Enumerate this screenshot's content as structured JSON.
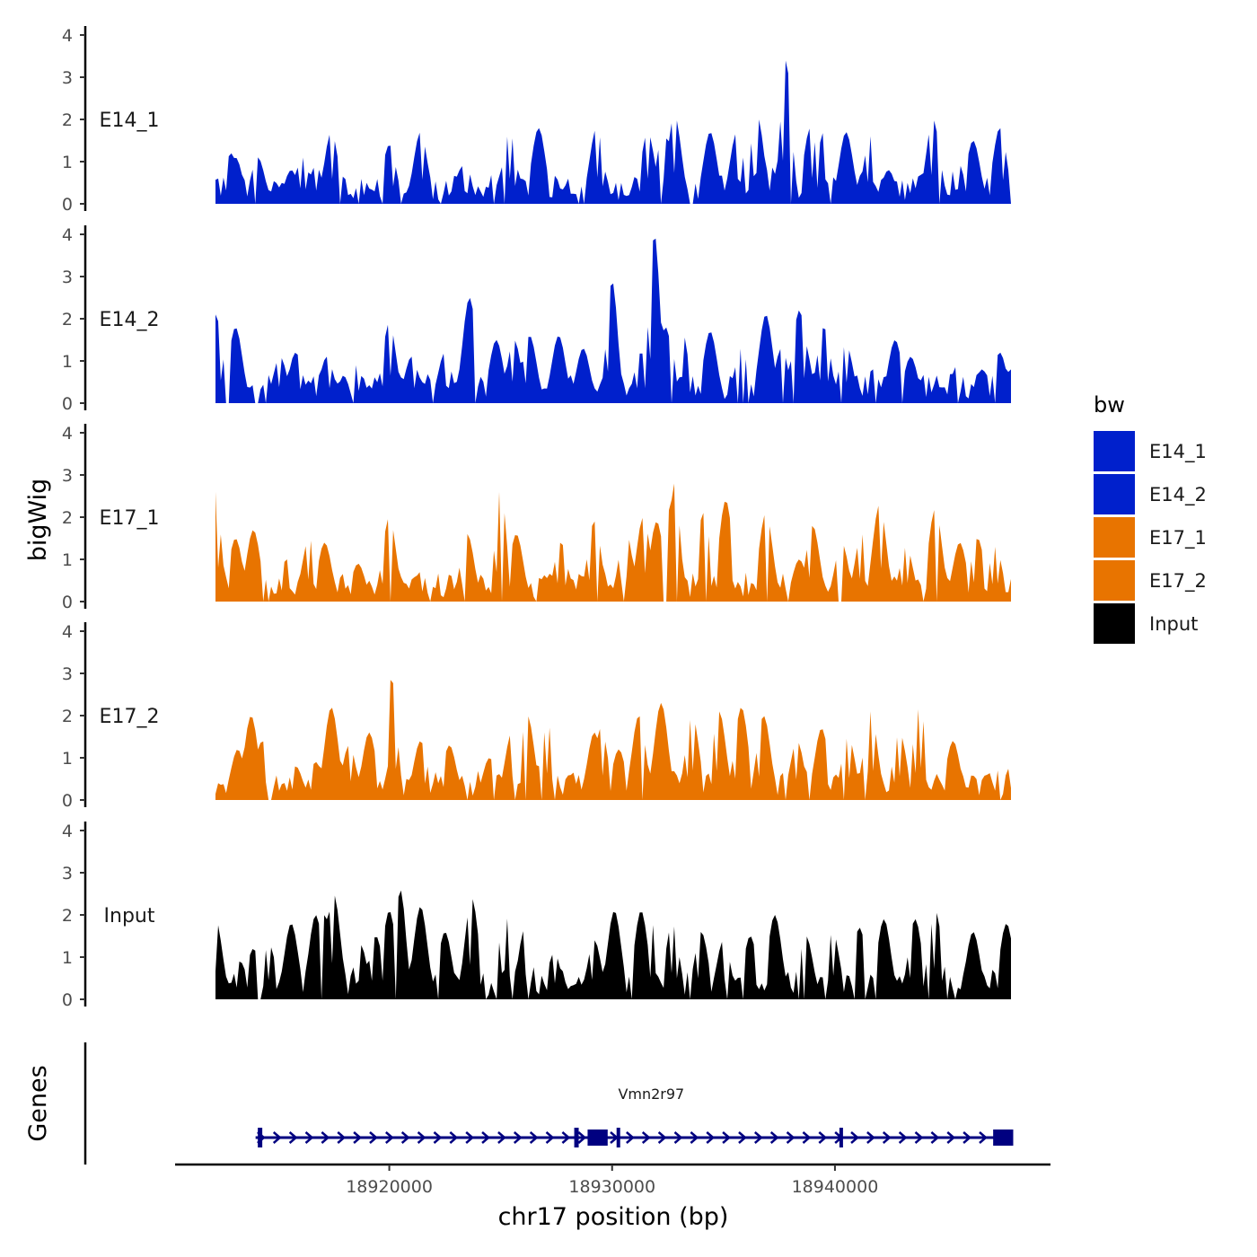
{
  "chart_data": {
    "type": "area",
    "ylabel": "bigWig",
    "xlabel": "chr17 position (bp)",
    "region": {
      "chrom": "chr17",
      "start": 18912200,
      "end": 18947900
    },
    "x_ticks": [
      18920000,
      18930000,
      18940000
    ],
    "x_tick_labels": [
      "18920000",
      "18930000",
      "18940000"
    ],
    "y_ticks": [
      0,
      1,
      2,
      3,
      4
    ],
    "y_tick_labels": [
      "0",
      "1",
      "2",
      "3",
      "4"
    ],
    "ylim": [
      0,
      4
    ],
    "legend": {
      "title": "bw",
      "position": "right"
    },
    "series": [
      {
        "name": "E14_1",
        "color": "#0020CC",
        "peaks": [
          [
            18912300,
            0.6
          ],
          [
            18912900,
            1.2
          ],
          [
            18913100,
            1.1
          ],
          [
            18913600,
            0.5
          ],
          [
            18914100,
            1.1
          ],
          [
            18915600,
            0.8
          ],
          [
            18916100,
            1.1
          ],
          [
            18916700,
            0.9
          ],
          [
            18917400,
            1.7
          ],
          [
            18918100,
            0.6
          ],
          [
            18918800,
            0.6
          ],
          [
            18920000,
            1.4
          ],
          [
            18921400,
            1.7
          ],
          [
            18923300,
            0.9
          ],
          [
            18925400,
            1.7
          ],
          [
            18926700,
            1.8
          ],
          [
            18928200,
            0.7
          ],
          [
            18929300,
            1.8
          ],
          [
            18931600,
            1.7
          ],
          [
            18932300,
            1.7
          ],
          [
            18932800,
            2.1
          ],
          [
            18934400,
            1.7
          ],
          [
            18935600,
            1.7
          ],
          [
            18936500,
            2.1
          ],
          [
            18937100,
            0.9
          ],
          [
            18937800,
            3.4
          ],
          [
            18938900,
            1.8
          ],
          [
            18939500,
            1.7
          ],
          [
            18940500,
            1.7
          ],
          [
            18941600,
            1.6
          ],
          [
            18942400,
            0.8
          ],
          [
            18944400,
            2.0
          ],
          [
            18945500,
            1.0
          ],
          [
            18946200,
            1.5
          ],
          [
            18947400,
            1.8
          ]
        ]
      },
      {
        "name": "E14_2",
        "color": "#0020CC",
        "peaks": [
          [
            18912200,
            2.1
          ],
          [
            18912800,
            0.9
          ],
          [
            18913100,
            1.8
          ],
          [
            18915100,
            1.1
          ],
          [
            18915800,
            1.2
          ],
          [
            18917200,
            1.1
          ],
          [
            18918500,
            0.9
          ],
          [
            18920000,
            1.9
          ],
          [
            18921000,
            1.1
          ],
          [
            18922500,
            1.2
          ],
          [
            18923600,
            2.5
          ],
          [
            18924800,
            1.5
          ],
          [
            18925600,
            1.5
          ],
          [
            18926300,
            1.6
          ],
          [
            18927600,
            1.6
          ],
          [
            18928700,
            1.3
          ],
          [
            18930000,
            2.9
          ],
          [
            18931300,
            1.2
          ],
          [
            18931900,
            4.0
          ],
          [
            18932400,
            1.8
          ],
          [
            18933100,
            1.8
          ],
          [
            18934400,
            1.7
          ],
          [
            18935800,
            1.3
          ],
          [
            18936900,
            2.1
          ],
          [
            18937600,
            1.3
          ],
          [
            18938600,
            1.5
          ],
          [
            18938400,
            2.2
          ],
          [
            18939500,
            1.8
          ],
          [
            18940500,
            1.4
          ],
          [
            18941700,
            0.8
          ],
          [
            18942700,
            1.5
          ],
          [
            18943400,
            1.1
          ],
          [
            18945500,
            0.9
          ],
          [
            18946600,
            0.8
          ],
          [
            18947400,
            1.2
          ],
          [
            18947900,
            0.8
          ]
        ]
      },
      {
        "name": "E17_1",
        "color": "#E87400",
        "peaks": [
          [
            18912200,
            2.6
          ],
          [
            18913100,
            1.5
          ],
          [
            18913900,
            1.7
          ],
          [
            18915400,
            1.0
          ],
          [
            18916400,
            1.5
          ],
          [
            18917100,
            1.4
          ],
          [
            18918600,
            0.9
          ],
          [
            18920000,
            2.0
          ],
          [
            18921400,
            0.7
          ],
          [
            18923500,
            1.6
          ],
          [
            18925000,
            2.7
          ],
          [
            18925700,
            1.6
          ],
          [
            18927700,
            1.4
          ],
          [
            18929200,
            1.9
          ],
          [
            18930600,
            1.7
          ],
          [
            18931400,
            2.0
          ],
          [
            18932000,
            1.9
          ],
          [
            18932600,
            2.2
          ],
          [
            18932800,
            2.8
          ],
          [
            18934100,
            2.1
          ],
          [
            18935100,
            2.4
          ],
          [
            18936900,
            2.1
          ],
          [
            18938400,
            1.0
          ],
          [
            18939000,
            1.8
          ],
          [
            18940300,
            1.4
          ],
          [
            18941200,
            1.6
          ],
          [
            18942000,
            2.3
          ],
          [
            18943200,
            1.3
          ],
          [
            18944500,
            2.2
          ],
          [
            18945600,
            1.4
          ],
          [
            18946400,
            1.5
          ],
          [
            18947200,
            1.3
          ]
        ]
      },
      {
        "name": "E17_2",
        "color": "#E87400",
        "peaks": [
          [
            18912300,
            0.4
          ],
          [
            18913200,
            1.2
          ],
          [
            18913800,
            2.0
          ],
          [
            18914300,
            1.4
          ],
          [
            18915800,
            0.8
          ],
          [
            18916700,
            0.9
          ],
          [
            18917400,
            2.2
          ],
          [
            18918200,
            1.3
          ],
          [
            18919100,
            1.6
          ],
          [
            18920100,
            2.9
          ],
          [
            18921400,
            1.4
          ],
          [
            18922700,
            1.3
          ],
          [
            18924500,
            1.0
          ],
          [
            18925500,
            1.6
          ],
          [
            18926200,
            2.0
          ],
          [
            18927100,
            1.8
          ],
          [
            18928100,
            0.6
          ],
          [
            18929200,
            1.6
          ],
          [
            18929500,
            1.7
          ],
          [
            18930300,
            1.2
          ],
          [
            18931200,
            2.0
          ],
          [
            18932200,
            2.3
          ],
          [
            18933600,
            2.0
          ],
          [
            18934800,
            2.1
          ],
          [
            18935800,
            2.2
          ],
          [
            18936800,
            2.0
          ],
          [
            18938300,
            1.4
          ],
          [
            18939400,
            1.7
          ],
          [
            18940600,
            1.5
          ],
          [
            18941600,
            2.1
          ],
          [
            18942900,
            1.6
          ],
          [
            18943800,
            2.2
          ],
          [
            18945300,
            1.4
          ],
          [
            18946800,
            0.6
          ],
          [
            18947900,
            0.8
          ]
        ]
      },
      {
        "name": "Input",
        "color": "#000000",
        "peaks": [
          [
            18912200,
            1.9
          ],
          [
            18913300,
            0.9
          ],
          [
            18913900,
            1.2
          ],
          [
            18914600,
            1.3
          ],
          [
            18915600,
            1.8
          ],
          [
            18916700,
            2.0
          ],
          [
            18917100,
            2.0
          ],
          [
            18917500,
            2.5
          ],
          [
            18918700,
            1.3
          ],
          [
            18919400,
            1.5
          ],
          [
            18920000,
            2.1
          ],
          [
            18920500,
            2.6
          ],
          [
            18921400,
            2.2
          ],
          [
            18922500,
            1.6
          ],
          [
            18923700,
            2.4
          ],
          [
            18925200,
            2.0
          ],
          [
            18926100,
            1.7
          ],
          [
            18927400,
            1.1
          ],
          [
            18929200,
            1.4
          ],
          [
            18930100,
            2.1
          ],
          [
            18931300,
            2.1
          ],
          [
            18931900,
            1.8
          ],
          [
            18932700,
            1.8
          ],
          [
            18934000,
            1.6
          ],
          [
            18935000,
            1.4
          ],
          [
            18936200,
            1.5
          ],
          [
            18937300,
            2.0
          ],
          [
            18938700,
            1.5
          ],
          [
            18939900,
            1.6
          ],
          [
            18941100,
            1.7
          ],
          [
            18942200,
            1.9
          ],
          [
            18943600,
            1.9
          ],
          [
            18944500,
            2.1
          ],
          [
            18946200,
            1.6
          ],
          [
            18947700,
            1.8
          ]
        ]
      }
    ],
    "genes_track": {
      "label": "Genes",
      "genes": [
        {
          "name": "Vmn2r97",
          "start": 18914000,
          "end": 18947900,
          "strand": "+",
          "exons": [
            [
              18914100,
              18914300
            ],
            [
              18928300,
              18928500
            ],
            [
              18928900,
              18929800
            ],
            [
              18930200,
              18930300
            ],
            [
              18940200,
              18940300
            ],
            [
              18947100,
              18948000
            ]
          ]
        }
      ]
    }
  }
}
